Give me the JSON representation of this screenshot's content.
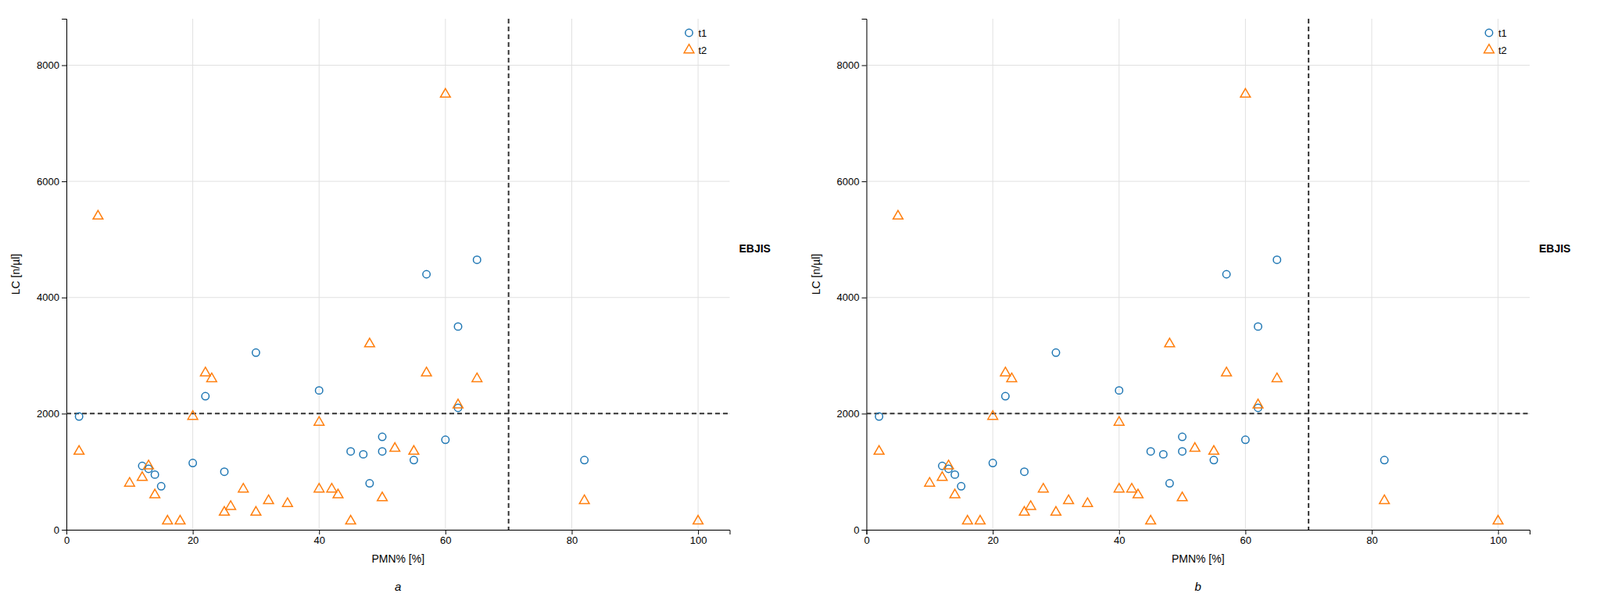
{
  "chart_data": [
    {
      "type": "scatter",
      "xlabel": "PMN% [%]",
      "ylabel": "LC [n/µl]",
      "annotations": [
        "EBJIS"
      ],
      "panel_label": "a",
      "xlim": [
        0,
        105
      ],
      "ylim": [
        0,
        8800
      ],
      "xticks": [
        0,
        20,
        40,
        60,
        80,
        100
      ],
      "yticks": [
        0,
        2000,
        4000,
        6000,
        8000
      ],
      "grid": true,
      "legend": "upper right",
      "reference_lines": [
        {
          "axis": "y",
          "value": 2000
        },
        {
          "axis": "x",
          "value": 70
        }
      ],
      "series": [
        {
          "name": "t1",
          "marker": "circle",
          "x": [
            2,
            12,
            13,
            14,
            15,
            20,
            22,
            25,
            30,
            40,
            45,
            47,
            48,
            50,
            50,
            55,
            57,
            60,
            62,
            62,
            65,
            82
          ],
          "values": [
            1950,
            1100,
            1050,
            950,
            750,
            1150,
            2300,
            1000,
            3050,
            2400,
            1350,
            1300,
            800,
            1600,
            1350,
            1200,
            4400,
            1550,
            3500,
            2100,
            4650,
            1200
          ]
        },
        {
          "name": "t2",
          "marker": "triangle",
          "x": [
            2,
            5,
            10,
            12,
            13,
            14,
            16,
            18,
            20,
            22,
            23,
            25,
            26,
            28,
            30,
            32,
            35,
            40,
            40,
            42,
            43,
            45,
            48,
            50,
            52,
            55,
            57,
            60,
            62,
            65,
            82,
            100
          ],
          "values": [
            1350,
            5400,
            800,
            900,
            1100,
            600,
            150,
            150,
            1950,
            2700,
            2600,
            300,
            400,
            700,
            300,
            500,
            450,
            700,
            1850,
            700,
            600,
            150,
            3200,
            550,
            1400,
            1350,
            2700,
            7500,
            2150,
            2600,
            500,
            150
          ]
        }
      ]
    },
    {
      "type": "scatter",
      "xlabel": "PMN% [%]",
      "ylabel": "LC [n/µl]",
      "annotations": [
        "EBJIS"
      ],
      "panel_label": "b",
      "xlim": [
        0,
        105
      ],
      "ylim": [
        0,
        8800
      ],
      "xticks": [
        0,
        20,
        40,
        60,
        80,
        100
      ],
      "yticks": [
        0,
        2000,
        4000,
        6000,
        8000
      ],
      "grid": true,
      "legend": "upper right",
      "reference_lines": [
        {
          "axis": "y",
          "value": 2000
        },
        {
          "axis": "x",
          "value": 70
        }
      ],
      "series": [
        {
          "name": "t1",
          "marker": "circle",
          "x": [
            2,
            12,
            13,
            14,
            15,
            20,
            22,
            25,
            30,
            40,
            45,
            47,
            48,
            50,
            50,
            55,
            57,
            60,
            62,
            62,
            65,
            82
          ],
          "values": [
            1950,
            1100,
            1050,
            950,
            750,
            1150,
            2300,
            1000,
            3050,
            2400,
            1350,
            1300,
            800,
            1600,
            1350,
            1200,
            4400,
            1550,
            3500,
            2100,
            4650,
            1200
          ]
        },
        {
          "name": "t2",
          "marker": "triangle",
          "x": [
            2,
            5,
            10,
            12,
            13,
            14,
            16,
            18,
            20,
            22,
            23,
            25,
            26,
            28,
            30,
            32,
            35,
            40,
            40,
            42,
            43,
            45,
            48,
            50,
            52,
            55,
            57,
            60,
            62,
            65,
            82,
            100
          ],
          "values": [
            1350,
            5400,
            800,
            900,
            1100,
            600,
            150,
            150,
            1950,
            2700,
            2600,
            300,
            400,
            700,
            300,
            500,
            450,
            700,
            1850,
            700,
            600,
            150,
            3200,
            550,
            1400,
            1350,
            2700,
            7500,
            2150,
            2600,
            500,
            150
          ]
        }
      ]
    }
  ]
}
